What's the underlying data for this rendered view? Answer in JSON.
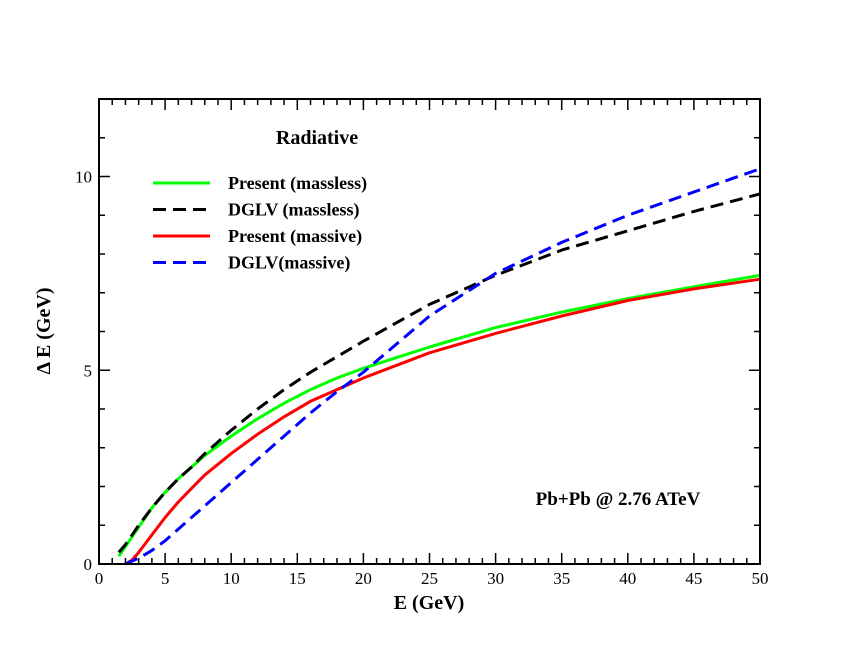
{
  "chart_data": {
    "type": "line",
    "title": "Radiative",
    "xlabel": "E (GeV)",
    "ylabel": "Δ  E (GeV)",
    "xlim": [
      0,
      50
    ],
    "ylim": [
      0,
      12
    ],
    "x_ticks": [
      0,
      5,
      10,
      15,
      20,
      25,
      30,
      35,
      40,
      45,
      50
    ],
    "y_ticks": [
      0,
      5,
      10
    ],
    "y_tick_labels": [
      "0",
      "5",
      "10"
    ],
    "grid": false,
    "legend_position": "top-left",
    "annotation": "Pb+Pb @ 2.76 ATeV",
    "series": [
      {
        "name": "Present (massless)",
        "color": "#00ff00",
        "dash": "solid",
        "x": [
          1.5,
          2,
          3,
          4,
          5,
          6,
          7,
          8,
          10,
          12,
          14,
          16,
          18,
          20,
          25,
          30,
          35,
          40,
          45,
          50
        ],
        "y": [
          0.2,
          0.45,
          0.95,
          1.45,
          1.85,
          2.2,
          2.5,
          2.8,
          3.3,
          3.75,
          4.15,
          4.5,
          4.8,
          5.05,
          5.6,
          6.1,
          6.5,
          6.85,
          7.15,
          7.45
        ]
      },
      {
        "name": "DGLV (massless)",
        "color": "#000000",
        "dash": "dashed",
        "x": [
          1.5,
          2,
          3,
          4,
          5,
          6,
          7,
          8,
          10,
          12,
          14,
          16,
          18,
          20,
          25,
          30,
          35,
          40,
          45,
          50
        ],
        "y": [
          0.3,
          0.5,
          1.0,
          1.45,
          1.85,
          2.2,
          2.5,
          2.85,
          3.45,
          4.0,
          4.5,
          4.95,
          5.35,
          5.75,
          6.7,
          7.45,
          8.1,
          8.6,
          9.1,
          9.55
        ]
      },
      {
        "name": "Present (massive)",
        "color": "#ff0000",
        "dash": "solid",
        "x": [
          2,
          2.5,
          3,
          4,
          5,
          6,
          7,
          8,
          10,
          12,
          14,
          16,
          18,
          20,
          25,
          30,
          35,
          40,
          45,
          50
        ],
        "y": [
          0.0,
          0.1,
          0.3,
          0.75,
          1.2,
          1.6,
          1.95,
          2.3,
          2.85,
          3.35,
          3.8,
          4.2,
          4.5,
          4.8,
          5.45,
          5.95,
          6.4,
          6.8,
          7.1,
          7.35
        ]
      },
      {
        "name": "DGLV(massive)",
        "color": "#0000ff",
        "dash": "dashed",
        "x": [
          2,
          3,
          4,
          5,
          6,
          7,
          8,
          10,
          12,
          14,
          16,
          18,
          20,
          25,
          30,
          35,
          40,
          45,
          50
        ],
        "y": [
          0.0,
          0.15,
          0.35,
          0.6,
          0.9,
          1.2,
          1.5,
          2.1,
          2.7,
          3.3,
          3.9,
          4.45,
          4.95,
          6.4,
          7.5,
          8.3,
          9.0,
          9.6,
          10.2
        ]
      }
    ]
  }
}
